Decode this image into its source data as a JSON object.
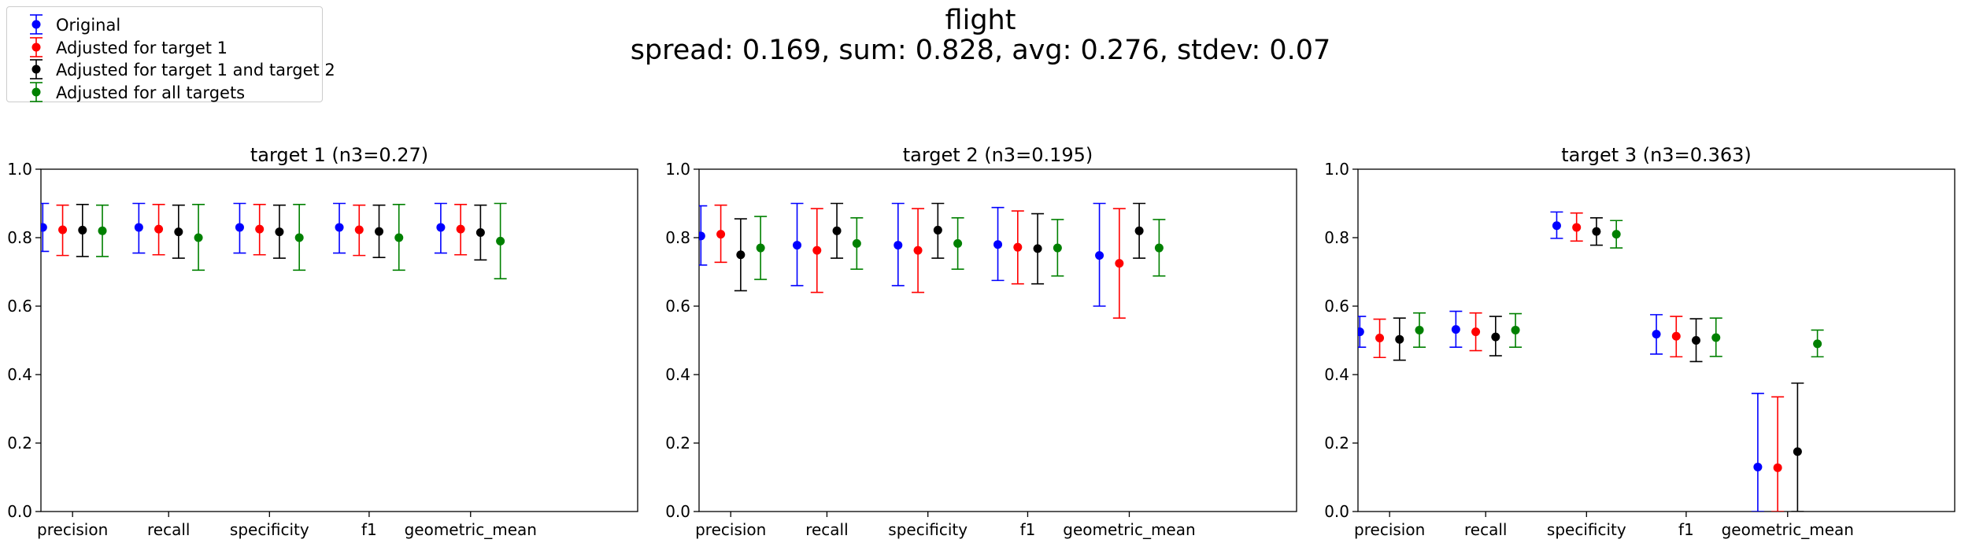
{
  "figure": {
    "title": "flight",
    "subtitle": "spread: 0.169, sum: 0.828, avg: 0.276, stdev: 0.07"
  },
  "legend": {
    "placement": "top-left",
    "entries": [
      {
        "label": "Original",
        "color": "#0000ff"
      },
      {
        "label": "Adjusted for target 1",
        "color": "#ff0000"
      },
      {
        "label": "Adjusted for target 1 and target 2",
        "color": "#000000"
      },
      {
        "label": "Adjusted for all targets",
        "color": "#008000"
      }
    ]
  },
  "chart_data": [
    {
      "type": "scatter",
      "title": "target 1 (n3=0.27)",
      "categories": [
        "precision",
        "recall",
        "specificity",
        "f1",
        "geometric_mean"
      ],
      "ylim": [
        0,
        1
      ],
      "yticks": [
        "0.0",
        "0.2",
        "0.4",
        "0.6",
        "0.8",
        "1.0"
      ],
      "grid": false,
      "series": [
        {
          "name": "Original",
          "color": "#0000ff",
          "values": [
            0.83,
            0.83,
            0.83,
            0.83,
            0.83
          ],
          "lower": [
            0.76,
            0.755,
            0.755,
            0.755,
            0.755
          ],
          "upper": [
            0.9,
            0.9,
            0.9,
            0.9,
            0.9
          ]
        },
        {
          "name": "Adjusted for target 1",
          "color": "#ff0000",
          "values": [
            0.823,
            0.825,
            0.825,
            0.823,
            0.825
          ],
          "lower": [
            0.748,
            0.75,
            0.75,
            0.748,
            0.75
          ],
          "upper": [
            0.895,
            0.897,
            0.897,
            0.895,
            0.897
          ]
        },
        {
          "name": "Adjusted for target 1 and target 2",
          "color": "#000000",
          "values": [
            0.822,
            0.817,
            0.817,
            0.818,
            0.815
          ],
          "lower": [
            0.745,
            0.74,
            0.74,
            0.742,
            0.735
          ],
          "upper": [
            0.897,
            0.895,
            0.895,
            0.895,
            0.895
          ]
        },
        {
          "name": "Adjusted for all targets",
          "color": "#008000",
          "values": [
            0.82,
            0.8,
            0.8,
            0.8,
            0.79
          ],
          "lower": [
            0.745,
            0.705,
            0.705,
            0.705,
            0.68
          ],
          "upper": [
            0.895,
            0.897,
            0.897,
            0.897,
            0.9
          ]
        }
      ]
    },
    {
      "type": "scatter",
      "title": "target 2 (n3=0.195)",
      "categories": [
        "precision",
        "recall",
        "specificity",
        "f1",
        "geometric_mean"
      ],
      "ylim": [
        0,
        1
      ],
      "yticks": [
        "0.0",
        "0.2",
        "0.4",
        "0.6",
        "0.8",
        "1.0"
      ],
      "grid": false,
      "series": [
        {
          "name": "Original",
          "color": "#0000ff",
          "values": [
            0.805,
            0.778,
            0.778,
            0.78,
            0.748
          ],
          "lower": [
            0.72,
            0.66,
            0.66,
            0.675,
            0.6
          ],
          "upper": [
            0.893,
            0.9,
            0.9,
            0.888,
            0.9
          ]
        },
        {
          "name": "Adjusted for target 1",
          "color": "#ff0000",
          "values": [
            0.81,
            0.763,
            0.763,
            0.772,
            0.725
          ],
          "lower": [
            0.728,
            0.64,
            0.64,
            0.665,
            0.565
          ],
          "upper": [
            0.895,
            0.885,
            0.885,
            0.878,
            0.885
          ]
        },
        {
          "name": "Adjusted for target 1 and target 2",
          "color": "#000000",
          "values": [
            0.75,
            0.82,
            0.822,
            0.768,
            0.82
          ],
          "lower": [
            0.645,
            0.74,
            0.74,
            0.665,
            0.74
          ],
          "upper": [
            0.855,
            0.9,
            0.9,
            0.87,
            0.9
          ]
        },
        {
          "name": "Adjusted for all targets",
          "color": "#008000",
          "values": [
            0.77,
            0.783,
            0.783,
            0.77,
            0.77
          ],
          "lower": [
            0.678,
            0.708,
            0.708,
            0.688,
            0.688
          ],
          "upper": [
            0.862,
            0.858,
            0.858,
            0.853,
            0.853
          ]
        }
      ]
    },
    {
      "type": "scatter",
      "title": "target 3 (n3=0.363)",
      "categories": [
        "precision",
        "recall",
        "specificity",
        "f1",
        "geometric_mean"
      ],
      "ylim": [
        0,
        1
      ],
      "yticks": [
        "0.0",
        "0.2",
        "0.4",
        "0.6",
        "0.8",
        "1.0"
      ],
      "grid": false,
      "series": [
        {
          "name": "Original",
          "color": "#0000ff",
          "values": [
            0.525,
            0.532,
            0.835,
            0.518,
            0.13
          ],
          "lower": [
            0.48,
            0.48,
            0.798,
            0.46,
            0
          ],
          "upper": [
            0.57,
            0.585,
            0.875,
            0.575,
            0.345
          ]
        },
        {
          "name": "Adjusted for target 1",
          "color": "#ff0000",
          "values": [
            0.507,
            0.525,
            0.83,
            0.512,
            0.128
          ],
          "lower": [
            0.45,
            0.47,
            0.79,
            0.452,
            0
          ],
          "upper": [
            0.562,
            0.58,
            0.872,
            0.57,
            0.335
          ]
        },
        {
          "name": "Adjusted for target 1 and target 2",
          "color": "#000000",
          "values": [
            0.503,
            0.51,
            0.818,
            0.5,
            0.175
          ],
          "lower": [
            0.442,
            0.455,
            0.778,
            0.438,
            0
          ],
          "upper": [
            0.565,
            0.57,
            0.858,
            0.563,
            0.375
          ]
        },
        {
          "name": "Adjusted for all targets",
          "color": "#008000",
          "values": [
            0.53,
            0.53,
            0.81,
            0.508,
            0.49
          ],
          "lower": [
            0.48,
            0.48,
            0.77,
            0.453,
            0.452
          ],
          "upper": [
            0.58,
            0.578,
            0.85,
            0.565,
            0.53
          ]
        }
      ]
    }
  ]
}
